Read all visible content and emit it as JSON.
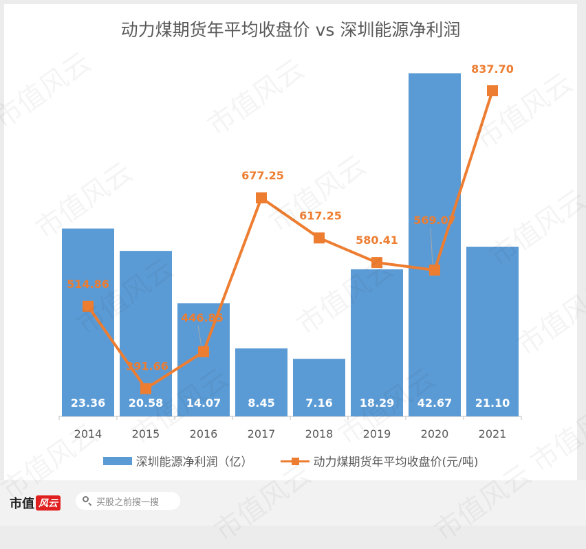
{
  "chart_data": {
    "type": "bar+line",
    "title": "动力煤期货年平均收盘价 vs 深圳能源净利润",
    "categories": [
      "2014",
      "2015",
      "2016",
      "2017",
      "2018",
      "2019",
      "2020",
      "2021"
    ],
    "series": [
      {
        "name": "深圳能源净利润（亿）",
        "type": "bar",
        "color": "#5b9bd5",
        "values": [
          23.36,
          20.58,
          14.07,
          8.45,
          7.16,
          18.29,
          42.67,
          21.1
        ],
        "labels": [
          "23.36",
          "20.58",
          "14.07",
          "8.45",
          "7.16",
          "18.29",
          "42.67",
          "21.10"
        ]
      },
      {
        "name": "动力煤期货年平均收盘价(元/吨)",
        "type": "line",
        "color": "#ed7d31",
        "values": [
          514.86,
          391.66,
          446.85,
          677.25,
          617.25,
          580.41,
          569.07,
          837.7
        ],
        "labels": [
          "514.86",
          "391.66",
          "446.85",
          "677.25",
          "617.25",
          "580.41",
          "569.07",
          "837.70"
        ]
      }
    ],
    "bar_axis_range": [
      0,
      44
    ],
    "line_axis_range": [
      350,
      880
    ],
    "grid": false,
    "legend_position": "bottom"
  },
  "footer": {
    "brand_text": "市值",
    "brand_seal_text": "风云",
    "search_placeholder": "买股之前搜一搜"
  },
  "watermark_text": "市值风云"
}
